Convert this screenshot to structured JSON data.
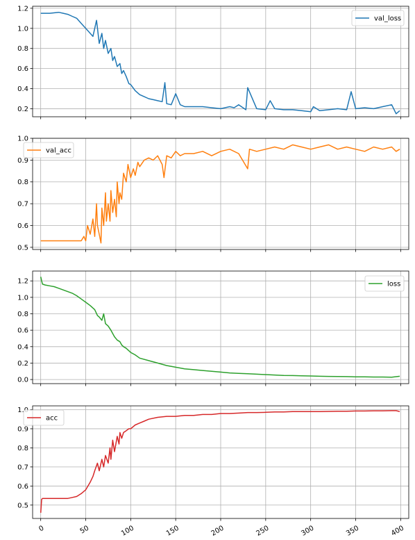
{
  "chart_data": [
    {
      "type": "line",
      "legend": "val_loss",
      "legend_position": "top-right",
      "color": "#1f77b4",
      "grid": true,
      "xlim": [
        -9,
        409
      ],
      "ylim": [
        0.12,
        1.22
      ],
      "yticks": [
        "0.2",
        "0.4",
        "0.6",
        "0.8",
        "1.0",
        "1.2"
      ],
      "ytick_values": [
        0.2,
        0.4,
        0.6,
        0.8,
        1.0,
        1.2
      ],
      "x_tick_labels_shown": false,
      "xticks": [
        0,
        50,
        100,
        150,
        200,
        250,
        300,
        350,
        400
      ],
      "series": [
        {
          "name": "val_loss",
          "x": [
            0,
            10,
            20,
            25,
            30,
            35,
            40,
            45,
            50,
            55,
            58,
            62,
            65,
            68,
            70,
            72,
            75,
            78,
            80,
            82,
            85,
            88,
            90,
            92,
            95,
            98,
            100,
            105,
            110,
            115,
            120,
            125,
            130,
            135,
            138,
            140,
            145,
            150,
            155,
            160,
            170,
            180,
            190,
            200,
            210,
            215,
            220,
            228,
            230,
            240,
            250,
            255,
            260,
            270,
            280,
            290,
            300,
            303,
            310,
            320,
            330,
            340,
            345,
            350,
            360,
            370,
            380,
            390,
            395,
            399
          ],
          "y": [
            1.15,
            1.15,
            1.16,
            1.15,
            1.14,
            1.12,
            1.1,
            1.05,
            1.0,
            0.95,
            0.92,
            1.08,
            0.85,
            0.95,
            0.8,
            0.88,
            0.75,
            0.8,
            0.68,
            0.72,
            0.62,
            0.65,
            0.55,
            0.58,
            0.52,
            0.45,
            0.44,
            0.38,
            0.34,
            0.32,
            0.3,
            0.29,
            0.28,
            0.27,
            0.46,
            0.25,
            0.24,
            0.35,
            0.24,
            0.22,
            0.22,
            0.22,
            0.21,
            0.2,
            0.22,
            0.21,
            0.24,
            0.19,
            0.41,
            0.2,
            0.19,
            0.28,
            0.2,
            0.19,
            0.19,
            0.18,
            0.17,
            0.22,
            0.18,
            0.19,
            0.2,
            0.19,
            0.37,
            0.2,
            0.21,
            0.2,
            0.22,
            0.24,
            0.15,
            0.18
          ]
        }
      ]
    },
    {
      "type": "line",
      "legend": "val_acc",
      "legend_position": "top-left",
      "color": "#ff7f0e",
      "grid": true,
      "xlim": [
        -9,
        409
      ],
      "ylim": [
        0.49,
        1.0
      ],
      "yticks": [
        "0.5",
        "0.6",
        "0.7",
        "0.8",
        "0.9",
        "1.0"
      ],
      "ytick_values": [
        0.5,
        0.6,
        0.7,
        0.8,
        0.9,
        1.0
      ],
      "x_tick_labels_shown": false,
      "xticks": [
        0,
        50,
        100,
        150,
        200,
        250,
        300,
        350,
        400
      ],
      "series": [
        {
          "name": "val_acc",
          "x": [
            0,
            10,
            20,
            30,
            40,
            45,
            48,
            50,
            52,
            55,
            58,
            60,
            62,
            63,
            65,
            67,
            68,
            70,
            72,
            73,
            75,
            77,
            78,
            80,
            82,
            84,
            85,
            87,
            88,
            90,
            92,
            95,
            97,
            100,
            103,
            105,
            108,
            110,
            115,
            120,
            125,
            130,
            135,
            137,
            140,
            145,
            150,
            155,
            160,
            170,
            180,
            190,
            200,
            210,
            220,
            230,
            232,
            240,
            250,
            260,
            270,
            280,
            290,
            300,
            310,
            320,
            330,
            340,
            350,
            360,
            370,
            380,
            390,
            395,
            399
          ],
          "y": [
            0.53,
            0.53,
            0.53,
            0.53,
            0.53,
            0.53,
            0.55,
            0.53,
            0.6,
            0.56,
            0.63,
            0.55,
            0.7,
            0.6,
            0.56,
            0.52,
            0.68,
            0.6,
            0.75,
            0.62,
            0.7,
            0.62,
            0.76,
            0.66,
            0.72,
            0.64,
            0.8,
            0.7,
            0.75,
            0.72,
            0.84,
            0.8,
            0.88,
            0.82,
            0.86,
            0.83,
            0.89,
            0.87,
            0.9,
            0.91,
            0.9,
            0.92,
            0.88,
            0.82,
            0.92,
            0.91,
            0.94,
            0.92,
            0.93,
            0.93,
            0.94,
            0.92,
            0.94,
            0.95,
            0.93,
            0.86,
            0.95,
            0.94,
            0.95,
            0.96,
            0.95,
            0.97,
            0.96,
            0.95,
            0.96,
            0.97,
            0.95,
            0.96,
            0.95,
            0.94,
            0.96,
            0.95,
            0.96,
            0.94,
            0.95
          ]
        }
      ]
    },
    {
      "type": "line",
      "legend": "loss",
      "legend_position": "top-right",
      "color": "#2ca02c",
      "grid": true,
      "xlim": [
        -9,
        409
      ],
      "ylim": [
        -0.05,
        1.32
      ],
      "yticks": [
        "0.0",
        "0.2",
        "0.4",
        "0.6",
        "0.8",
        "1.0",
        "1.2"
      ],
      "ytick_values": [
        0.0,
        0.2,
        0.4,
        0.6,
        0.8,
        1.0,
        1.2
      ],
      "x_tick_labels_shown": false,
      "xticks": [
        0,
        50,
        100,
        150,
        200,
        250,
        300,
        350,
        400
      ],
      "series": [
        {
          "name": "loss",
          "x": [
            0,
            1,
            2,
            5,
            10,
            15,
            20,
            25,
            30,
            35,
            40,
            45,
            50,
            55,
            60,
            63,
            65,
            68,
            70,
            72,
            75,
            78,
            80,
            82,
            85,
            88,
            90,
            92,
            95,
            98,
            100,
            105,
            110,
            120,
            130,
            140,
            150,
            160,
            170,
            180,
            190,
            200,
            210,
            220,
            230,
            240,
            250,
            260,
            270,
            280,
            290,
            300,
            310,
            320,
            330,
            340,
            350,
            360,
            370,
            380,
            390,
            399
          ],
          "y": [
            1.25,
            1.2,
            1.16,
            1.15,
            1.14,
            1.13,
            1.11,
            1.09,
            1.07,
            1.05,
            1.02,
            0.98,
            0.94,
            0.9,
            0.85,
            0.78,
            0.76,
            0.72,
            0.8,
            0.68,
            0.65,
            0.6,
            0.56,
            0.52,
            0.48,
            0.46,
            0.42,
            0.4,
            0.38,
            0.35,
            0.33,
            0.3,
            0.26,
            0.23,
            0.2,
            0.17,
            0.15,
            0.13,
            0.12,
            0.11,
            0.1,
            0.09,
            0.08,
            0.075,
            0.07,
            0.065,
            0.06,
            0.055,
            0.05,
            0.048,
            0.045,
            0.043,
            0.04,
            0.038,
            0.036,
            0.035,
            0.033,
            0.032,
            0.03,
            0.03,
            0.028,
            0.04
          ]
        }
      ]
    },
    {
      "type": "line",
      "legend": "acc",
      "legend_position": "top-left",
      "color": "#d62728",
      "grid": true,
      "xlim": [
        -9,
        409
      ],
      "ylim": [
        0.43,
        1.02
      ],
      "yticks": [
        "0.5",
        "0.6",
        "0.7",
        "0.8",
        "0.9",
        "1.0"
      ],
      "ytick_values": [
        0.5,
        0.6,
        0.7,
        0.8,
        0.9,
        1.0
      ],
      "x_tick_labels_shown": true,
      "xticks": [
        0,
        50,
        100,
        150,
        200,
        250,
        300,
        350,
        400
      ],
      "xtick_labels": [
        "0",
        "50",
        "100",
        "150",
        "200",
        "250",
        "300",
        "350",
        "400"
      ],
      "series": [
        {
          "name": "acc",
          "x": [
            0,
            1,
            2,
            5,
            10,
            20,
            30,
            35,
            40,
            45,
            50,
            55,
            58,
            60,
            63,
            65,
            68,
            70,
            72,
            75,
            77,
            78,
            80,
            82,
            85,
            87,
            88,
            90,
            92,
            95,
            98,
            100,
            105,
            110,
            115,
            120,
            130,
            140,
            150,
            160,
            170,
            180,
            190,
            200,
            210,
            220,
            230,
            240,
            250,
            260,
            270,
            280,
            290,
            300,
            310,
            320,
            330,
            340,
            350,
            360,
            370,
            380,
            390,
            395,
            399
          ],
          "y": [
            0.46,
            0.53,
            0.535,
            0.535,
            0.535,
            0.535,
            0.535,
            0.54,
            0.545,
            0.56,
            0.58,
            0.62,
            0.65,
            0.68,
            0.72,
            0.68,
            0.74,
            0.7,
            0.76,
            0.72,
            0.8,
            0.74,
            0.84,
            0.78,
            0.86,
            0.82,
            0.88,
            0.85,
            0.88,
            0.89,
            0.9,
            0.9,
            0.92,
            0.93,
            0.94,
            0.95,
            0.96,
            0.965,
            0.965,
            0.97,
            0.97,
            0.975,
            0.975,
            0.98,
            0.98,
            0.982,
            0.985,
            0.985,
            0.986,
            0.988,
            0.988,
            0.99,
            0.99,
            0.99,
            0.99,
            0.991,
            0.992,
            0.992,
            0.993,
            0.993,
            0.994,
            0.994,
            0.995,
            0.995,
            0.99
          ]
        }
      ]
    }
  ]
}
